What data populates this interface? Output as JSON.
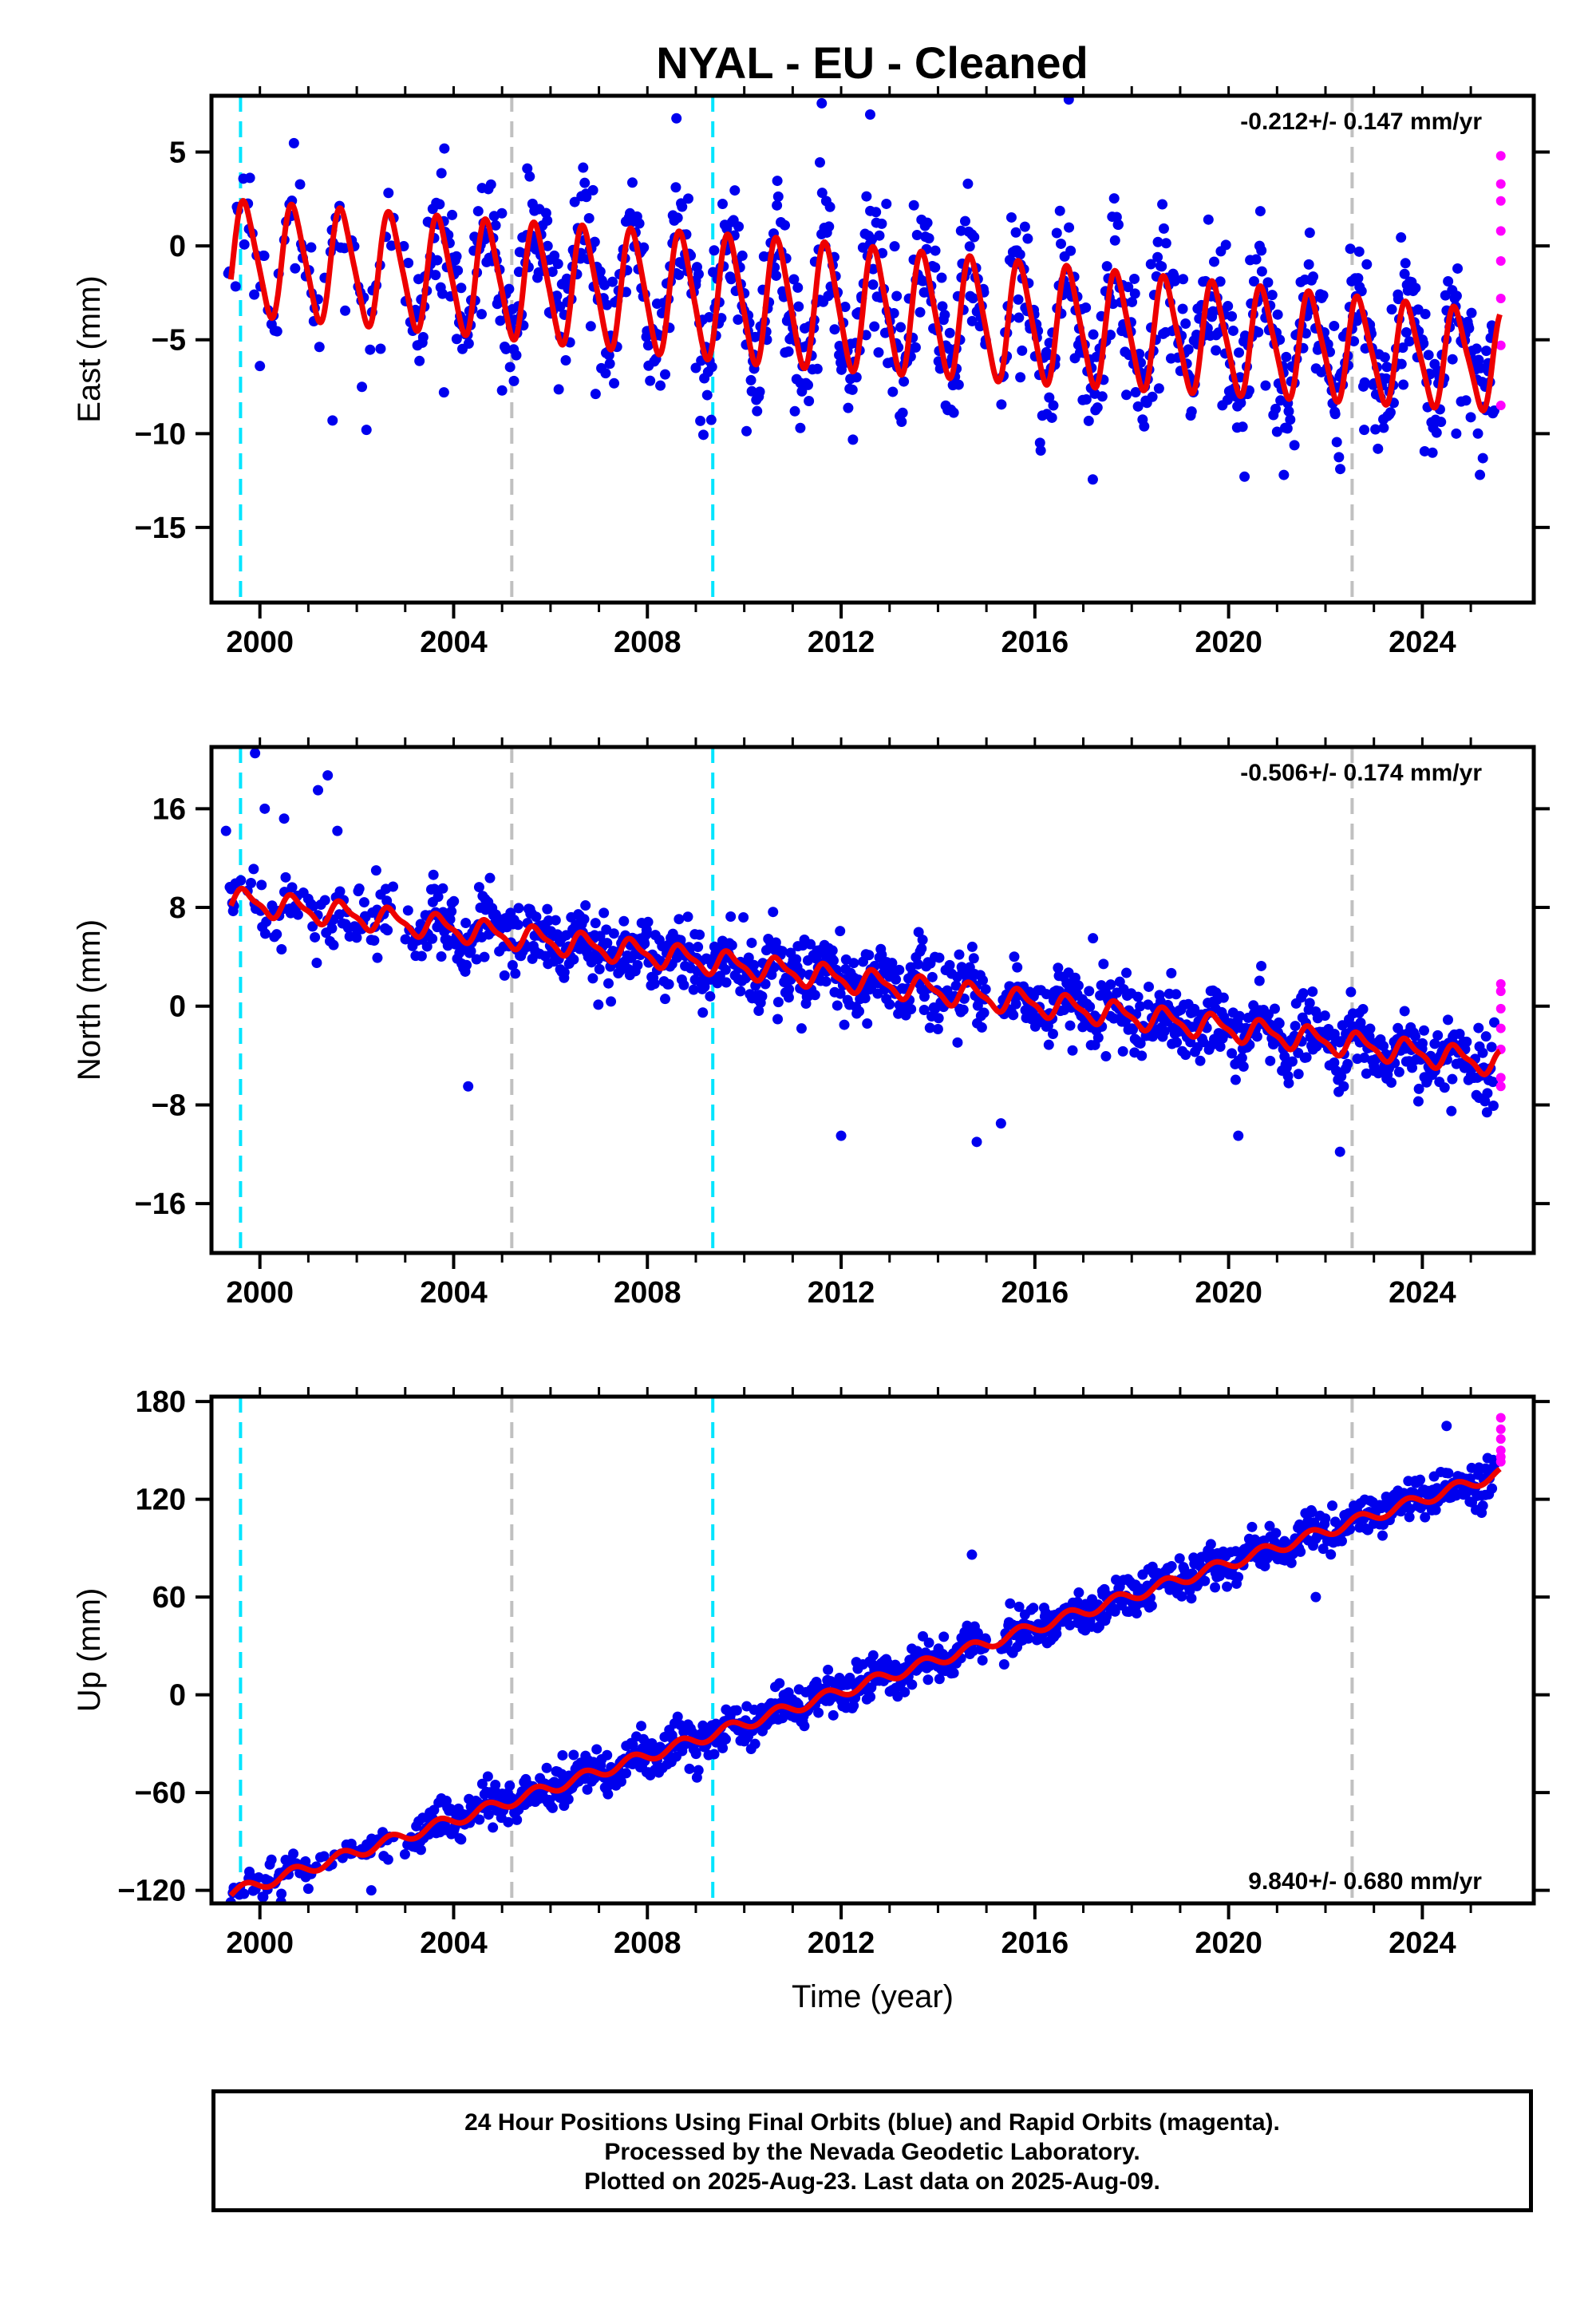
{
  "title": "NYAL  - EU - Cleaned",
  "footer": {
    "line1": "24 Hour Positions Using Final Orbits (blue) and Rapid Orbits (magenta).",
    "line2": "Processed by the Nevada Geodetic Laboratory.",
    "line3": "Plotted on 2025-Aug-23. Last data on 2025-Aug-09."
  },
  "colors": {
    "final": "#0000ee",
    "rapid": "#ff00ff",
    "model": "#ee0000",
    "antenna_change": "#00e5ff",
    "equipment_change": "#c0c0c0"
  },
  "chart_data": [
    {
      "type": "scatter",
      "component": "east",
      "ylabel": "East (mm)",
      "xlabel": "",
      "xlim": [
        1999.0,
        2026.3
      ],
      "ylim": [
        -19,
        8
      ],
      "xticks": [
        2000,
        2004,
        2008,
        2012,
        2016,
        2020,
        2024
      ],
      "yticks": [
        5,
        0,
        -5,
        -10,
        -15
      ],
      "ytick_labels": [
        "5",
        "0",
        "−5",
        "−10",
        "−15"
      ],
      "rate_label": "-0.212+/- 0.147 mm/yr",
      "rate_position": "top-right",
      "model": {
        "offset": -0.6,
        "rate": -0.212,
        "amplitude": [
          2.9,
          3.0,
          3.3,
          3.1,
          2.5
        ],
        "amplitude_years": [
          1999.4,
          2005,
          2010.5,
          2016,
          2025.6
        ],
        "semi_annual": 0.5
      },
      "scatter_spread": 1.8,
      "rapid_points": [
        4.8,
        3.3,
        2.4,
        0.8,
        -0.8,
        -2.8,
        -5.3,
        -8.5
      ],
      "vlines": [
        {
          "x": 1999.6,
          "kind": "antenna"
        },
        {
          "x": 2005.2,
          "kind": "equipment"
        },
        {
          "x": 2009.35,
          "kind": "antenna"
        },
        {
          "x": 2022.55,
          "kind": "equipment"
        }
      ],
      "outliers": [
        [
          2001.5,
          -9.3
        ],
        [
          2002.2,
          -9.8
        ],
        [
          2003.8,
          -7.8
        ],
        [
          2005.0,
          -7.7
        ],
        [
          2009.0,
          -6.5
        ],
        [
          2015.7,
          -7.0
        ],
        [
          2021.0,
          -9.9
        ],
        [
          2022.8,
          -9.8
        ],
        [
          2024.7,
          -10.0
        ],
        [
          2008.6,
          6.8
        ],
        [
          2011.6,
          7.6
        ],
        [
          2016.7,
          7.8
        ],
        [
          2000.0,
          -6.4
        ],
        [
          2012.6,
          7.0
        ]
      ]
    },
    {
      "type": "scatter",
      "component": "north",
      "ylabel": "North (mm)",
      "xlabel": "",
      "xlim": [
        1999.0,
        2026.3
      ],
      "ylim": [
        -20,
        21
      ],
      "xticks": [
        2000,
        2004,
        2008,
        2012,
        2016,
        2020,
        2024
      ],
      "yticks": [
        16,
        8,
        0,
        -8,
        -16
      ],
      "ytick_labels": [
        "16",
        "8",
        "0",
        "−8",
        "−16"
      ],
      "rate_label": "-0.506+/- 0.174 mm/yr",
      "rate_position": "top-right",
      "model": {
        "offset": 8.6,
        "rate": -0.506,
        "amplitude": [
          0.9,
          0.9,
          0.9,
          0.9,
          0.9
        ],
        "amplitude_years": [
          1999.4,
          2005,
          2010.5,
          2016,
          2025.6
        ],
        "semi_annual": 0.3
      },
      "scatter_spread": 1.4,
      "rapid_points": [
        1.8,
        1.2,
        -0.2,
        -1.8,
        -3.5,
        -5.8,
        -6.5
      ],
      "vlines": [
        {
          "x": 1999.6,
          "kind": "antenna"
        },
        {
          "x": 2005.2,
          "kind": "equipment"
        },
        {
          "x": 2009.35,
          "kind": "antenna"
        },
        {
          "x": 2022.55,
          "kind": "equipment"
        }
      ],
      "outliers": [
        [
          1999.9,
          20.5
        ],
        [
          2000.1,
          16.0
        ],
        [
          2000.5,
          15.2
        ],
        [
          2001.4,
          18.7
        ],
        [
          2001.2,
          17.5
        ],
        [
          2001.6,
          14.2
        ],
        [
          2002.4,
          11.0
        ],
        [
          2002.6,
          9.5
        ],
        [
          2004.3,
          -6.5
        ],
        [
          2013.6,
          6.0
        ],
        [
          2014.8,
          -11.0
        ],
        [
          2012.0,
          -10.5
        ],
        [
          2015.3,
          -9.5
        ],
        [
          2022.3,
          -11.8
        ],
        [
          2020.2,
          -10.5
        ],
        [
          2024.6,
          -8.5
        ],
        [
          2017.2,
          5.5
        ],
        [
          1999.3,
          14.2
        ]
      ]
    },
    {
      "type": "scatter",
      "component": "up",
      "ylabel": "Up (mm)",
      "xlabel": "Time (year)",
      "xlim": [
        1999.0,
        2026.3
      ],
      "ylim": [
        -128,
        183
      ],
      "xticks": [
        2000,
        2004,
        2008,
        2012,
        2016,
        2020,
        2024
      ],
      "yticks": [
        180,
        120,
        60,
        0,
        -60,
        -120
      ],
      "ytick_labels": [
        "180",
        "120",
        "60",
        "0",
        "−60",
        "−120"
      ],
      "rate_label": "9.840+/- 0.680 mm/yr",
      "rate_position": "bottom-right",
      "model": {
        "offset": -122,
        "rate": 9.84,
        "amplitude": [
          3.5,
          3.5,
          3.5,
          3.5,
          3.5
        ],
        "amplitude_years": [
          1999.4,
          2005,
          2010.5,
          2016,
          2025.6
        ],
        "semi_annual": 0.0
      },
      "scatter_spread": 6.5,
      "rapid_points": [
        170,
        163,
        157,
        150,
        146,
        143
      ],
      "vlines": [
        {
          "x": 1999.6,
          "kind": "antenna"
        },
        {
          "x": 2005.2,
          "kind": "equipment"
        },
        {
          "x": 2009.35,
          "kind": "antenna"
        },
        {
          "x": 2022.55,
          "kind": "equipment"
        }
      ],
      "outliers": [
        [
          2014.7,
          86
        ],
        [
          2002.3,
          -120
        ],
        [
          2024.5,
          165
        ],
        [
          2021.8,
          60
        ],
        [
          2001.0,
          -119
        ]
      ]
    }
  ]
}
